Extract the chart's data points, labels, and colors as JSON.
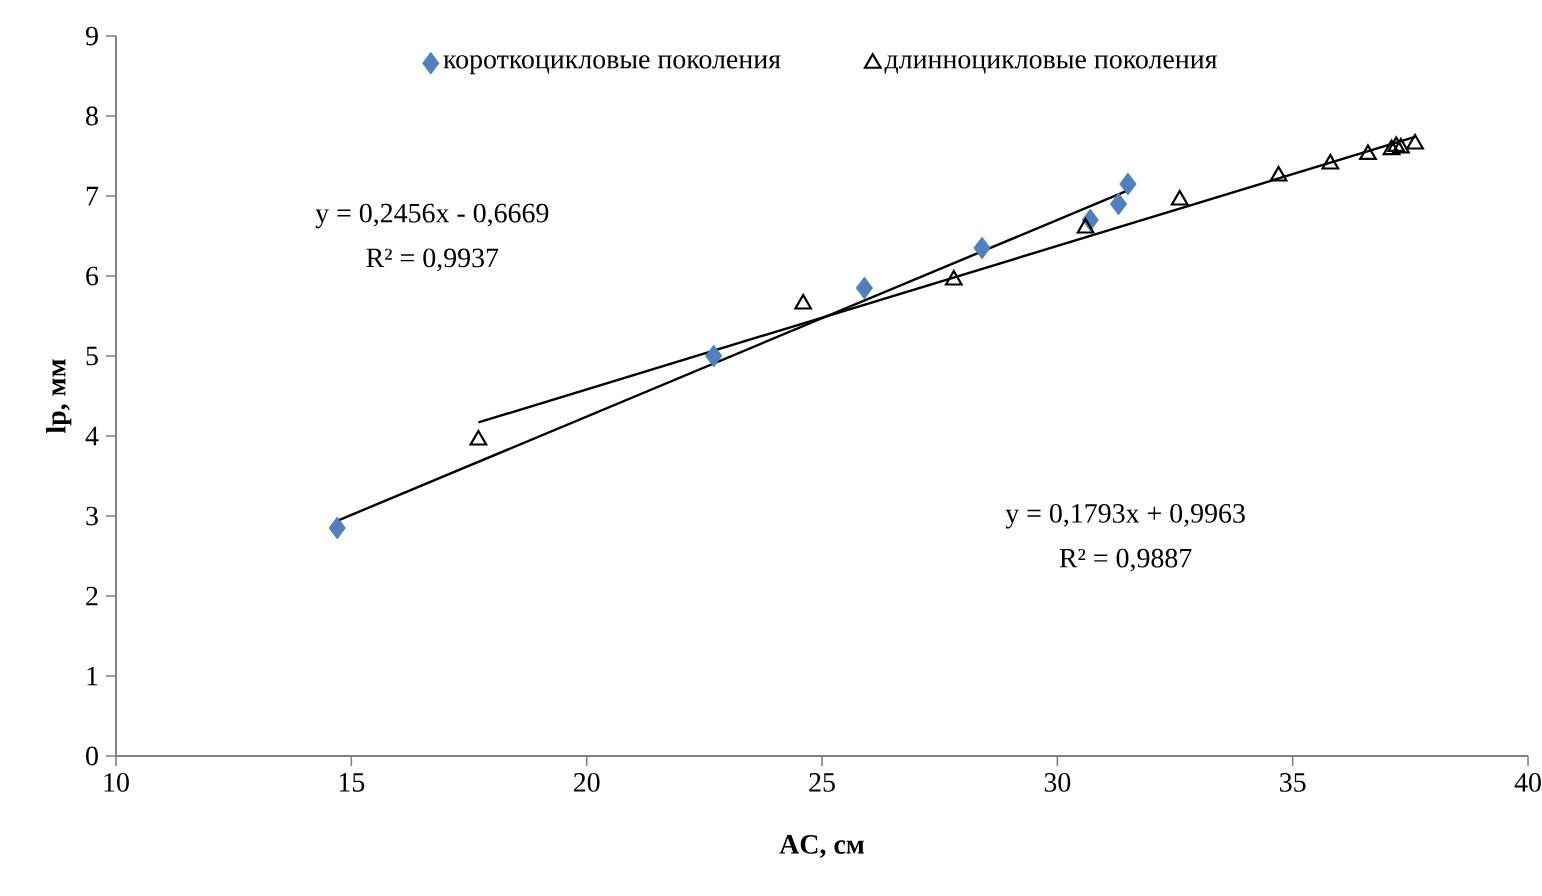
{
  "chart_data": {
    "type": "scatter",
    "xlabel": "AC, см",
    "ylabel": "lp, мм",
    "xlim": [
      10,
      40
    ],
    "ylim": [
      0,
      9
    ],
    "xticks": [
      10,
      15,
      20,
      25,
      30,
      35,
      40
    ],
    "yticks": [
      0,
      1,
      2,
      3,
      4,
      5,
      6,
      7,
      8,
      9
    ],
    "grid": false,
    "legend": "top",
    "series": [
      {
        "name": "короткоцикловые поколения",
        "color": "#4f81bd",
        "marker": "diamond",
        "x": [
          14.7,
          22.7,
          25.9,
          28.4,
          30.7,
          31.3,
          31.5
        ],
        "values": [
          2.85,
          5.0,
          5.85,
          6.35,
          6.7,
          6.9,
          7.15
        ]
      },
      {
        "name": "длинноцикловые поколения",
        "color": "#000000",
        "marker": "triangle",
        "x": [
          17.7,
          24.6,
          27.8,
          30.6,
          32.6,
          34.7,
          35.8,
          36.6,
          37.1,
          37.2,
          37.3,
          37.6
        ],
        "values": [
          3.95,
          5.65,
          5.95,
          6.6,
          6.95,
          7.25,
          7.4,
          7.52,
          7.58,
          7.62,
          7.6,
          7.65
        ]
      },
      {
        "type": "line",
        "color": "#000000",
        "marker": "none",
        "x": [
          14.7,
          31.5
        ],
        "values": [
          2.94,
          7.07
        ]
      },
      {
        "type": "line",
        "color": "#000000",
        "marker": "none",
        "x": [
          17.7,
          37.6
        ],
        "values": [
          4.17,
          7.74
        ]
      }
    ],
    "annotations": [
      "y = 0,2456x - 0,6669",
      "R² = 0,9937",
      "y = 0,1793x + 0,9963",
      "R² = 0,9887"
    ]
  }
}
